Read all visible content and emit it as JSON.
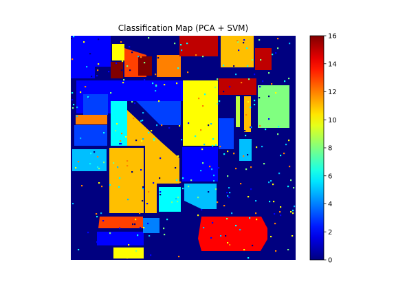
{
  "chart_data": {
    "type": "heatmap",
    "title": "Classification Map (PCA + SVM)",
    "colormap": "jet",
    "colorbar": {
      "min": 0,
      "max": 16,
      "ticks": [
        0,
        2,
        4,
        6,
        8,
        10,
        12,
        14,
        16
      ],
      "tick_labels": [
        "0",
        "2",
        "4",
        "6",
        "8",
        "10",
        "12",
        "14",
        "16"
      ]
    },
    "grid_size": [
      145,
      145
    ],
    "class_regions": [
      {
        "class": 0,
        "shape": "background"
      },
      {
        "class": 2,
        "shape": "top-left field"
      },
      {
        "class": 3,
        "shape": "left mid field"
      },
      {
        "class": 6,
        "shape": "left lower field"
      },
      {
        "class": 11,
        "shape": "central field"
      },
      {
        "class": 10,
        "shape": "upper-center field"
      },
      {
        "class": 8,
        "shape": "right field"
      },
      {
        "class": 14,
        "shape": "top fields"
      },
      {
        "class": 15,
        "shape": "top-center field"
      },
      {
        "class": 16,
        "shape": "small top-left field"
      },
      {
        "class": 12,
        "shape": "top-left and lower-left fields"
      },
      {
        "class": 14,
        "shape": "bottom-right field"
      },
      {
        "class": 5,
        "shape": "lower-center field"
      }
    ]
  }
}
